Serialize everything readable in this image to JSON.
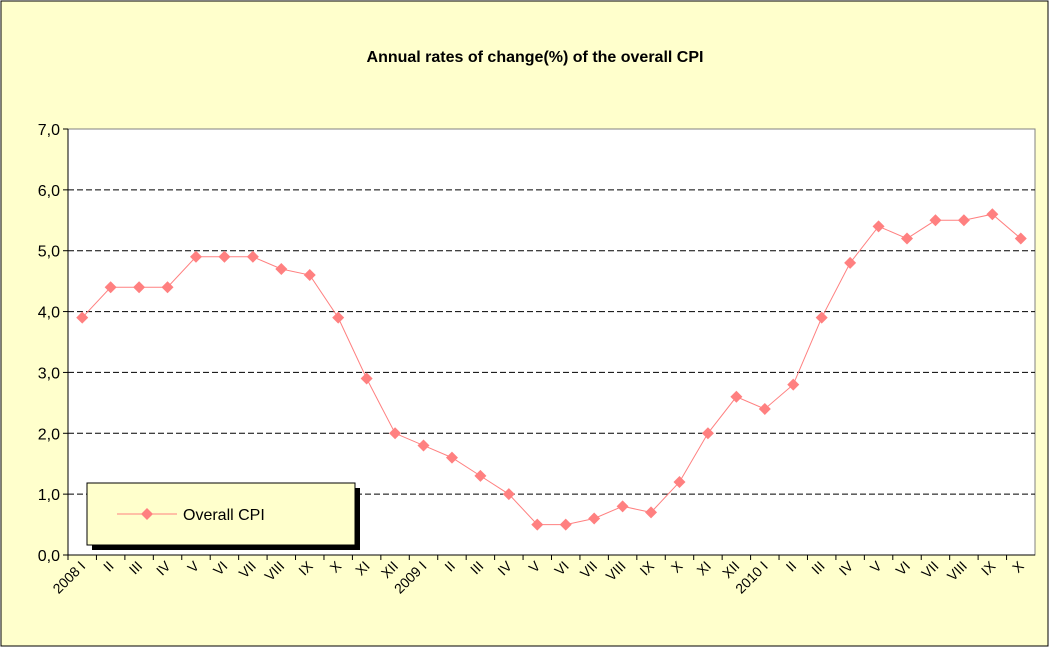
{
  "chart_data": {
    "type": "line",
    "title": "Annual rates of change(%) of the overall CPI",
    "categories": [
      "2008 I",
      "II",
      "III",
      "IV",
      "V",
      "VI",
      "VII",
      "VIII",
      "IX",
      "X",
      "XI",
      "XII",
      "2009 I",
      "II",
      "III",
      "IV",
      "V",
      "VI",
      "VII",
      "VIII",
      "IX",
      "X",
      "XI",
      "XII",
      "2010 I",
      "II",
      "III",
      "IV",
      "V",
      "VI",
      "VII",
      "VIII",
      "IX",
      "X"
    ],
    "series": [
      {
        "name": "Overall CPI",
        "color": "#ff8080",
        "values": [
          3.9,
          4.4,
          4.4,
          4.4,
          4.9,
          4.9,
          4.9,
          4.7,
          4.6,
          3.9,
          2.9,
          2.0,
          1.8,
          1.6,
          1.3,
          1.0,
          0.5,
          0.5,
          0.6,
          0.8,
          0.7,
          1.2,
          2.0,
          2.6,
          2.4,
          2.8,
          3.9,
          4.8,
          5.4,
          5.2,
          5.5,
          5.5,
          5.6,
          5.2
        ]
      }
    ],
    "ylim": [
      0,
      7
    ],
    "yticks": [
      {
        "value": 0,
        "label": "0,0"
      },
      {
        "value": 1,
        "label": "1,0"
      },
      {
        "value": 2,
        "label": "2,0"
      },
      {
        "value": 3,
        "label": "3,0"
      },
      {
        "value": 4,
        "label": "4,0"
      },
      {
        "value": 5,
        "label": "5,0"
      },
      {
        "value": 6,
        "label": "6,0"
      },
      {
        "value": 7,
        "label": "7,0"
      }
    ],
    "grid": true,
    "legend": "lower-left"
  }
}
